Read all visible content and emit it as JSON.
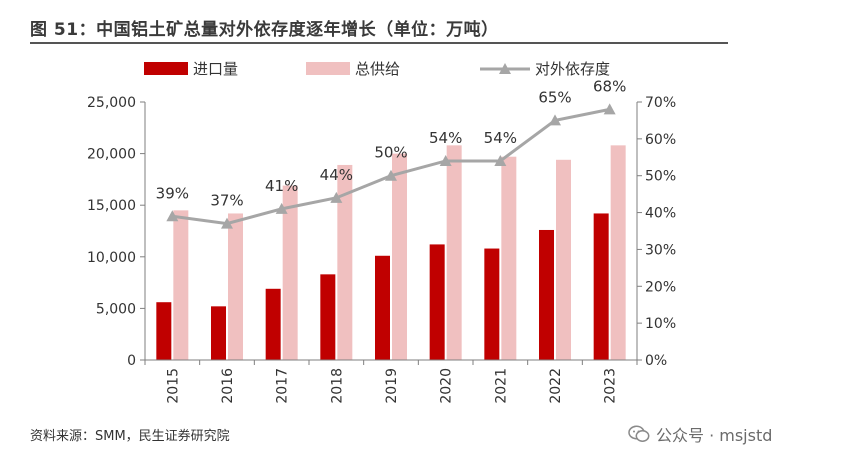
{
  "figure": {
    "title": "图 51：中国铝土矿总量对外依存度逐年增长（单位：万吨）",
    "source": "资料来源：SMM，民生证券研究院",
    "watermark_icon": "wechat-icon",
    "watermark": "公众号 · msjstd"
  },
  "colors": {
    "imports": "#c00000",
    "supply": "#f0c0c0",
    "dependence": "#a6a6a6"
  },
  "chart_data": {
    "type": "bar",
    "categories": [
      "2015",
      "2016",
      "2017",
      "2018",
      "2019",
      "2020",
      "2021",
      "2022",
      "2023"
    ],
    "series": [
      {
        "name": "进口量",
        "type": "bar",
        "axis": "left",
        "values": [
          5600,
          5200,
          6900,
          8300,
          10100,
          11200,
          10800,
          12600,
          14200
        ]
      },
      {
        "name": "总供给",
        "type": "bar",
        "axis": "left",
        "values": [
          14500,
          14200,
          16900,
          18900,
          20000,
          20800,
          19700,
          19400,
          20800
        ]
      },
      {
        "name": "对外依存度",
        "type": "line",
        "axis": "right",
        "marker": "triangle",
        "values": [
          39,
          37,
          41,
          44,
          50,
          54,
          54,
          65,
          68
        ],
        "labels": [
          "39%",
          "37%",
          "41%",
          "44%",
          "50%",
          "54%",
          "54%",
          "65%",
          "68%"
        ]
      }
    ],
    "y_left": {
      "min": 0,
      "max": 25000,
      "ticks": [
        "0",
        "5,000",
        "10,000",
        "15,000",
        "20,000",
        "25,000"
      ]
    },
    "y_right": {
      "min": 0,
      "max": 70,
      "ticks": [
        "0%",
        "10%",
        "20%",
        "30%",
        "40%",
        "50%",
        "60%",
        "70%"
      ]
    },
    "legend_position": "top",
    "grid": false
  }
}
